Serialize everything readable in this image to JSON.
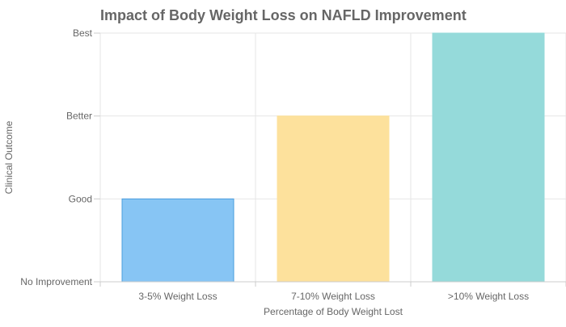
{
  "chart_data": {
    "type": "bar",
    "title": "Impact of Body Weight Loss on NAFLD Improvement",
    "xlabel": "Percentage of Body Weight Lost",
    "ylabel": "Clinical Outcome",
    "categories": [
      "3-5% Weight Loss",
      "7-10% Weight Loss",
      ">10% Weight Loss"
    ],
    "values": [
      1,
      2,
      3
    ],
    "y_ticks": [
      {
        "value": 0,
        "label": "No Improvement"
      },
      {
        "value": 1,
        "label": "Good"
      },
      {
        "value": 2,
        "label": "Better"
      },
      {
        "value": 3,
        "label": "Best"
      }
    ],
    "ylim": [
      0,
      3
    ],
    "grid": true,
    "legend": "none",
    "colors": {
      "bars": [
        {
          "fill": "#87c5f4",
          "stroke": "#4a9ede"
        },
        {
          "fill": "#fde19c",
          "stroke": "#fde19c"
        },
        {
          "fill": "#95dada",
          "stroke": "#95dada"
        }
      ],
      "title": "#666666",
      "text": "#666666",
      "grid": "#e6e6e6",
      "axis": "#cccccc"
    }
  }
}
